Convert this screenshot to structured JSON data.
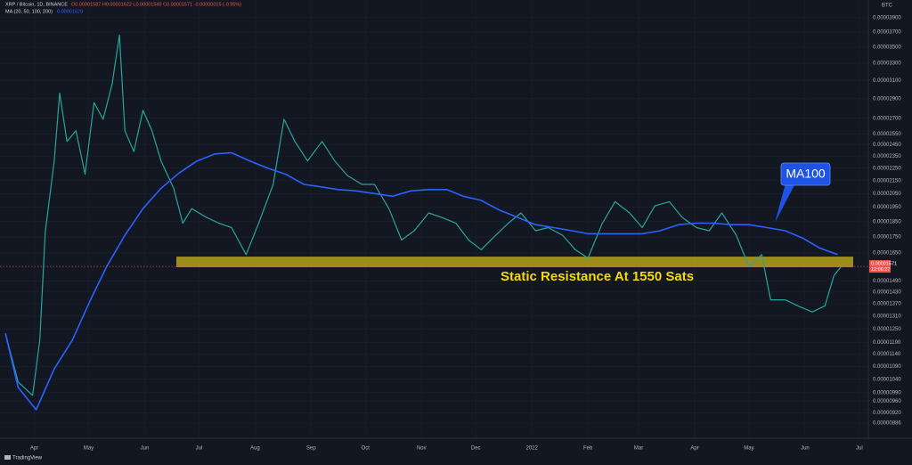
{
  "chart_data": {
    "type": "line",
    "title": "XRP / Bitcoin, 1D, BINANCE",
    "ohlc_text": "O0.00001587 H0.00001622 L0.00001549 C0.00001571 -0.00000015 (-0.95%)",
    "indicator_text": "MA (20, 50, 100, 200)",
    "indicator_value": "0.00001629",
    "y_axis_unit": "BTC",
    "log_scale": true,
    "grid": true,
    "background": "#131722",
    "xlim": [
      -19,
      461
    ],
    "ylim": [
      8.38e-06,
      4.16e-05
    ],
    "xticks": [
      {
        "value": 0,
        "label": "Apr"
      },
      {
        "value": 30,
        "label": "May"
      },
      {
        "value": 61,
        "label": "Jun"
      },
      {
        "value": 91,
        "label": "Jul"
      },
      {
        "value": 122,
        "label": "Aug"
      },
      {
        "value": 153,
        "label": "Sep"
      },
      {
        "value": 183,
        "label": "Oct"
      },
      {
        "value": 214,
        "label": "Nov"
      },
      {
        "value": 244,
        "label": "Dec"
      },
      {
        "value": 275,
        "label": "2022"
      },
      {
        "value": 306,
        "label": "Feb"
      },
      {
        "value": 334,
        "label": "Mar"
      },
      {
        "value": 365,
        "label": "Apr"
      },
      {
        "value": 395,
        "label": "May"
      },
      {
        "value": 426,
        "label": "Jun"
      },
      {
        "value": 456,
        "label": "Jul"
      }
    ],
    "yticks": [
      {
        "value": 3.9e-05,
        "label": "0.00003900"
      },
      {
        "value": 3.7e-05,
        "label": "0.00003700"
      },
      {
        "value": 3.5e-05,
        "label": "0.00003500"
      },
      {
        "value": 3.3e-05,
        "label": "0.00003300"
      },
      {
        "value": 3.1e-05,
        "label": "0.00003100"
      },
      {
        "value": 2.9e-05,
        "label": "0.00002900"
      },
      {
        "value": 2.7e-05,
        "label": "0.00002700"
      },
      {
        "value": 2.55e-05,
        "label": "0.00002550"
      },
      {
        "value": 2.45e-05,
        "label": "0.00002450"
      },
      {
        "value": 2.35e-05,
        "label": "0.00002350"
      },
      {
        "value": 2.25e-05,
        "label": "0.00002250"
      },
      {
        "value": 2.15e-05,
        "label": "0.00002150"
      },
      {
        "value": 2.05e-05,
        "label": "0.00002050"
      },
      {
        "value": 1.95e-05,
        "label": "0.00001950"
      },
      {
        "value": 1.85e-05,
        "label": "0.00001850"
      },
      {
        "value": 1.75e-05,
        "label": "0.00001750"
      },
      {
        "value": 1.65e-05,
        "label": "0.00001650"
      },
      {
        "value": 1.49e-05,
        "label": "0.00001490"
      },
      {
        "value": 1.43e-05,
        "label": "0.00001430"
      },
      {
        "value": 1.37e-05,
        "label": "0.00001370"
      },
      {
        "value": 1.31e-05,
        "label": "0.00001310"
      },
      {
        "value": 1.25e-05,
        "label": "0.00001250"
      },
      {
        "value": 1.19e-05,
        "label": "0.00001190"
      },
      {
        "value": 1.14e-05,
        "label": "0.00001140"
      },
      {
        "value": 1.09e-05,
        "label": "0.00001090"
      },
      {
        "value": 1.04e-05,
        "label": "0.00001040"
      },
      {
        "value": 9.9e-06,
        "label": "0.00000990"
      },
      {
        "value": 9.6e-06,
        "label": "0.00000960"
      },
      {
        "value": 9.2e-06,
        "label": "0.00000920"
      },
      {
        "value": 8.86e-06,
        "label": "0.00000886"
      }
    ],
    "series": [
      {
        "name": "XRP / Bitcoin",
        "color": "#26a69a",
        "width": 1.2,
        "x": [
          -16,
          -9,
          -1,
          3,
          6,
          11,
          14,
          18,
          23,
          28,
          33,
          38,
          43,
          47,
          50,
          55,
          60,
          65,
          70,
          77,
          82,
          87,
          95,
          102,
          109,
          117,
          124,
          132,
          138,
          144,
          151,
          159,
          166,
          173,
          181,
          188,
          196,
          203,
          210,
          218,
          225,
          233,
          240,
          247,
          255,
          262,
          269,
          277,
          284,
          292,
          299,
          306,
          314,
          321,
          329,
          336,
          343,
          351,
          358,
          366,
          373,
          380,
          388,
          395,
          402,
          407,
          415,
          422,
          430,
          437,
          442,
          446
        ],
        "values": [
          1.23e-05,
          1.03e-05,
          9.8e-06,
          1.2e-05,
          1.78e-05,
          2.31e-05,
          2.96e-05,
          2.48e-05,
          2.58e-05,
          2.2e-05,
          2.86e-05,
          2.69e-05,
          3.06e-05,
          3.66e-05,
          2.58e-05,
          2.39e-05,
          2.78e-05,
          2.58e-05,
          2.31e-05,
          2.09e-05,
          1.84e-05,
          1.94e-05,
          1.88e-05,
          1.84e-05,
          1.81e-05,
          1.64e-05,
          1.84e-05,
          2.12e-05,
          2.69e-05,
          2.48e-05,
          2.31e-05,
          2.48e-05,
          2.31e-05,
          2.19e-05,
          2.12e-05,
          2.12e-05,
          1.94e-05,
          1.73e-05,
          1.79e-05,
          1.91e-05,
          1.88e-05,
          1.84e-05,
          1.73e-05,
          1.67e-05,
          1.76e-05,
          1.84e-05,
          1.91e-05,
          1.79e-05,
          1.81e-05,
          1.76e-05,
          1.67e-05,
          1.62e-05,
          1.84e-05,
          1.99e-05,
          1.91e-05,
          1.81e-05,
          1.96e-05,
          1.99e-05,
          1.88e-05,
          1.81e-05,
          1.79e-05,
          1.91e-05,
          1.76e-05,
          1.57e-05,
          1.64e-05,
          1.39e-05,
          1.39e-05,
          1.36e-05,
          1.33e-05,
          1.36e-05,
          1.52e-05,
          1.57e-05
        ]
      },
      {
        "name": "MA100",
        "color": "#2962ff",
        "width": 1.6,
        "x": [
          -16,
          -9,
          1,
          11,
          21,
          31,
          40,
          50,
          60,
          70,
          80,
          90,
          100,
          109,
          119,
          129,
          139,
          149,
          159,
          168,
          178,
          188,
          198,
          208,
          218,
          228,
          237,
          247,
          257,
          267,
          277,
          287,
          297,
          306,
          316,
          326,
          336,
          346,
          356,
          366,
          375,
          385,
          395,
          405,
          415,
          425,
          434,
          444
        ],
        "values": [
          1.23e-05,
          1.01e-05,
          9.3e-06,
          1.08e-05,
          1.2e-05,
          1.39e-05,
          1.57e-05,
          1.76e-05,
          1.94e-05,
          2.09e-05,
          2.21e-05,
          2.31e-05,
          2.37e-05,
          2.38e-05,
          2.31e-05,
          2.25e-05,
          2.2e-05,
          2.12e-05,
          2.1e-05,
          2.08e-05,
          2.07e-05,
          2.05e-05,
          2.03e-05,
          2.07e-05,
          2.08e-05,
          2.08e-05,
          2.03e-05,
          2e-05,
          1.93e-05,
          1.88e-05,
          1.83e-05,
          1.81e-05,
          1.79e-05,
          1.77e-05,
          1.77e-05,
          1.77e-05,
          1.77e-05,
          1.79e-05,
          1.83e-05,
          1.84e-05,
          1.84e-05,
          1.83e-05,
          1.83e-05,
          1.81e-05,
          1.79e-05,
          1.74e-05,
          1.68e-05,
          1.64e-05
        ]
      }
    ],
    "zone": [
      1.566e-05,
      1.628e-05
    ],
    "zone_label": "Static Resistance At 1550 Sats",
    "zone_color": "#c9b41a",
    "ma_label": "MA100",
    "last_price": {
      "value": 1.571e-05,
      "label": "0.00001571"
    },
    "countdown": "12:06:27",
    "brand": "TradingView"
  }
}
